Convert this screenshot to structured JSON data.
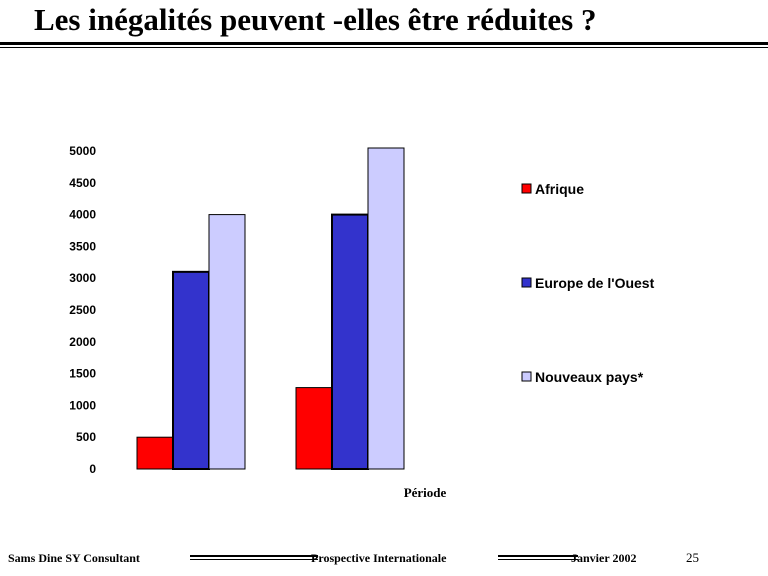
{
  "title": "Les inégalités  peuvent -elles être réduites ?",
  "chart_data": {
    "type": "bar",
    "title": "",
    "xlabel": "Période",
    "ylabel": "",
    "ylim": [
      0,
      5000
    ],
    "yticks": [
      0,
      500,
      1000,
      1500,
      2000,
      2500,
      3000,
      3500,
      4000,
      4500,
      5000
    ],
    "categories": [
      "",
      ""
    ],
    "series": [
      {
        "name": "Afrique",
        "values": [
          500,
          1280
        ],
        "color": "#ff0000"
      },
      {
        "name": "Europe de l'Ouest",
        "values": [
          3100,
          4000
        ],
        "color": "#3333cc"
      },
      {
        "name": "Nouveaux pays*",
        "values": [
          4000,
          5050
        ],
        "color": "#ccccff"
      }
    ],
    "grid": false,
    "legend_position": "right"
  },
  "footer": {
    "author": "Sams Dine SY Consultant",
    "subject": "Prospective Internationale",
    "date": "Janvier 2002",
    "page": "25"
  }
}
